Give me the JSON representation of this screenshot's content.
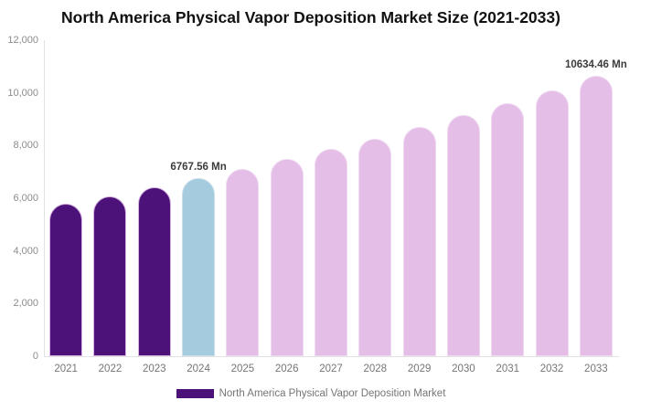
{
  "title": "North America Physical Vapor Deposition Market Size (2021-2033)",
  "chart_data": {
    "type": "bar",
    "title": "North America Physical Vapor Deposition Market Size (2021-2033)",
    "categories": [
      "2021",
      "2022",
      "2023",
      "2024",
      "2025",
      "2026",
      "2027",
      "2028",
      "2029",
      "2030",
      "2031",
      "2032",
      "2033"
    ],
    "values": [
      5800,
      6080,
      6420,
      6767.56,
      7115,
      7480,
      7865,
      8270,
      8695,
      9145,
      9615,
      10110,
      10634.46
    ],
    "unit": "Mn",
    "ylim": [
      0,
      12000
    ],
    "y_tick_values": [
      0,
      2000,
      4000,
      6000,
      8000,
      10000,
      12000
    ],
    "y_tick_labels": [
      "0",
      "2,000",
      "4,000",
      "6,000",
      "8,000",
      "10,000",
      "12,000"
    ],
    "grid": "off",
    "legend_position": "bottom-center",
    "bar_colors": [
      "#4D1279",
      "#4D1279",
      "#4D1279",
      "#A5CBDF",
      "#E4BEE6",
      "#E4BEE6",
      "#E4BEE6",
      "#E4BEE6",
      "#E4BEE6",
      "#E4BEE6",
      "#E4BEE6",
      "#E4BEE6",
      "#E4BEE6"
    ],
    "bar_border_colors": [
      "#D8B5E2",
      "#D8B5E2",
      "#D8B5E2",
      "#C9DEEA",
      "#EFD8F2",
      "#EFD8F2",
      "#EFD8F2",
      "#EFD8F2",
      "#EFD8F2",
      "#EFD8F2",
      "#EFD8F2",
      "#EFD8F2",
      "#EFD8F2"
    ],
    "annotations": [
      {
        "category": "2024",
        "text": "6767.56 Mn"
      },
      {
        "category": "2033",
        "text": "10634.46 Mn"
      }
    ],
    "legend": [
      {
        "label": "North America Physical Vapor Deposition Market",
        "color": "#4D1279"
      }
    ],
    "colors": {
      "historical": "#4D1279",
      "base_year": "#A5CBDF",
      "forecast": "#E4BEE6",
      "axis_line": "#e2e2e2",
      "tick_text": "#8c8c8c",
      "annotation_text": "#3c3c3c"
    }
  }
}
